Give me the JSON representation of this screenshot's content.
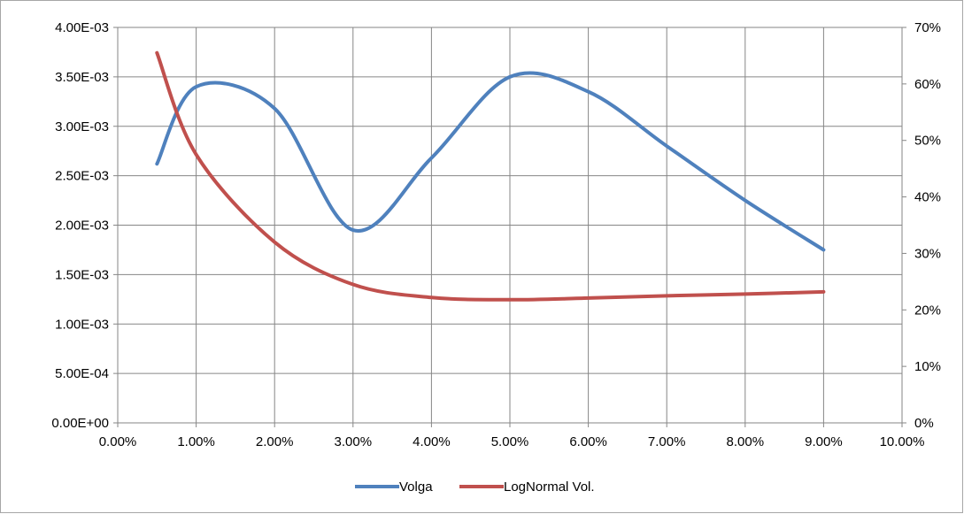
{
  "chart_data": {
    "type": "line",
    "title": "",
    "xlabel": "",
    "ylabel": "",
    "y2label": "",
    "grid": true,
    "legend_position": "bottom",
    "xlim": [
      0,
      0.1
    ],
    "ylim": [
      0,
      0.004
    ],
    "y2lim": [
      0,
      0.7
    ],
    "x_ticks": [
      "0.00%",
      "1.00%",
      "2.00%",
      "3.00%",
      "4.00%",
      "5.00%",
      "6.00%",
      "7.00%",
      "8.00%",
      "9.00%",
      "10.00%"
    ],
    "y_ticks": [
      "0.00E+00",
      "5.00E-04",
      "1.00E-03",
      "1.50E-03",
      "2.00E-03",
      "2.50E-03",
      "3.00E-03",
      "3.50E-03",
      "4.00E-03"
    ],
    "y2_ticks": [
      "0%",
      "10%",
      "20%",
      "30%",
      "40%",
      "50%",
      "60%",
      "70%"
    ],
    "series": [
      {
        "name": "Volga",
        "axis": "left",
        "color": "#4f81bd",
        "x": [
          0.005,
          0.01,
          0.02,
          0.03,
          0.04,
          0.05,
          0.06,
          0.07,
          0.08,
          0.09
        ],
        "y": [
          0.00262,
          0.0034,
          0.00318,
          0.00195,
          0.00268,
          0.0035,
          0.00335,
          0.0028,
          0.00225,
          0.00175
        ]
      },
      {
        "name": "LogNormal Vol.",
        "axis": "right",
        "color": "#c0504d",
        "x": [
          0.005,
          0.01,
          0.02,
          0.03,
          0.04,
          0.05,
          0.06,
          0.07,
          0.08,
          0.09
        ],
        "y": [
          0.655,
          0.475,
          0.32,
          0.245,
          0.222,
          0.218,
          0.221,
          0.225,
          0.228,
          0.232
        ]
      }
    ]
  }
}
